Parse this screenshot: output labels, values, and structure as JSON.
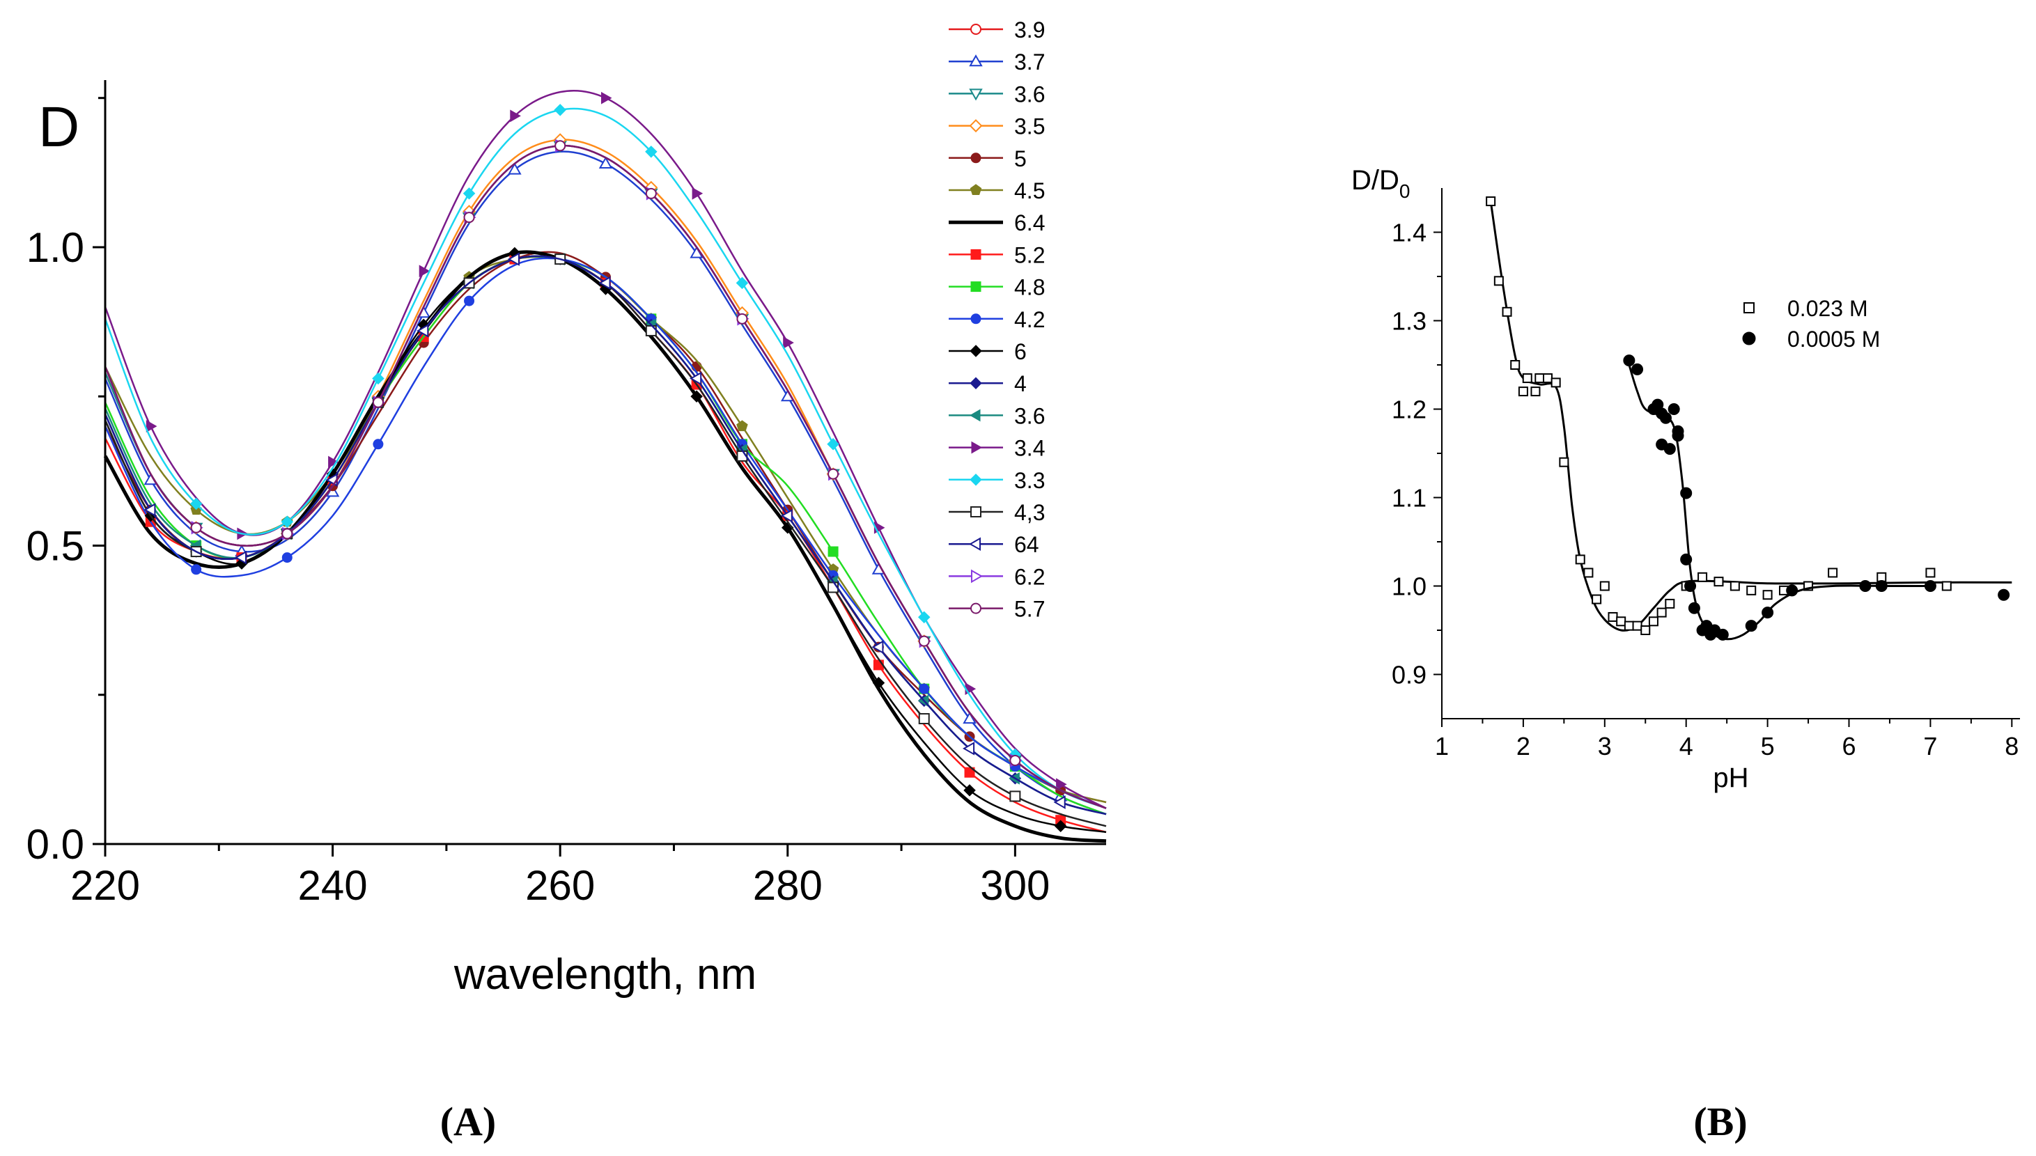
{
  "chart_data": [
    {
      "type": "line",
      "panel_label": "(A)",
      "title": "",
      "corner_label": "D",
      "xlabel": "wavelength, nm",
      "ylabel": "",
      "xlim": [
        220,
        308
      ],
      "ylim": [
        0.0,
        1.28
      ],
      "xticks": [
        220,
        240,
        260,
        280,
        300
      ],
      "xtick_labels": [
        "220",
        "240",
        "260",
        "280",
        "300"
      ],
      "yticks": [
        0.0,
        0.5,
        1.0
      ],
      "ytick_labels": [
        "0.0",
        "0.5",
        "1.0"
      ],
      "grid": false,
      "legend_position": "top-right",
      "x": [
        220,
        224,
        228,
        232,
        236,
        240,
        244,
        248,
        252,
        256,
        260,
        264,
        268,
        272,
        276,
        280,
        284,
        288,
        292,
        296,
        300,
        304,
        308
      ],
      "series": [
        {
          "name": "3.9",
          "color": "#e41a1c",
          "marker": "circle-open",
          "values": [
            0.79,
            0.62,
            0.53,
            0.5,
            0.52,
            0.6,
            0.74,
            0.9,
            1.05,
            1.14,
            1.17,
            1.15,
            1.09,
            1.0,
            0.88,
            0.76,
            0.62,
            0.47,
            0.34,
            0.22,
            0.14,
            0.09,
            0.06
          ]
        },
        {
          "name": "3.7",
          "color": "#1f3fd0",
          "marker": "triangle-up-open",
          "values": [
            0.78,
            0.61,
            0.52,
            0.49,
            0.51,
            0.59,
            0.73,
            0.89,
            1.04,
            1.13,
            1.16,
            1.14,
            1.08,
            0.99,
            0.87,
            0.75,
            0.61,
            0.46,
            0.33,
            0.21,
            0.13,
            0.08,
            0.05
          ]
        },
        {
          "name": "3.6",
          "color": "#1a8a8a",
          "marker": "triangle-down-open",
          "values": [
            0.79,
            0.62,
            0.53,
            0.5,
            0.52,
            0.6,
            0.74,
            0.9,
            1.05,
            1.14,
            1.17,
            1.15,
            1.09,
            1.0,
            0.88,
            0.76,
            0.62,
            0.47,
            0.34,
            0.22,
            0.14,
            0.09,
            0.06
          ]
        },
        {
          "name": "3.5",
          "color": "#ff8c1a",
          "marker": "diamond-open",
          "values": [
            0.8,
            0.62,
            0.53,
            0.5,
            0.52,
            0.6,
            0.75,
            0.91,
            1.06,
            1.15,
            1.18,
            1.16,
            1.1,
            1.01,
            0.89,
            0.77,
            0.62,
            0.47,
            0.34,
            0.22,
            0.14,
            0.09,
            0.06
          ]
        },
        {
          "name": "5",
          "color": "#8b1a1a",
          "marker": "circle",
          "values": [
            0.7,
            0.56,
            0.49,
            0.48,
            0.52,
            0.6,
            0.72,
            0.84,
            0.93,
            0.98,
            0.99,
            0.95,
            0.88,
            0.8,
            0.68,
            0.56,
            0.44,
            0.33,
            0.25,
            0.18,
            0.13,
            0.09,
            0.07
          ]
        },
        {
          "name": "4.5",
          "color": "#808020",
          "marker": "pentagon",
          "values": [
            0.8,
            0.65,
            0.56,
            0.52,
            0.54,
            0.62,
            0.74,
            0.86,
            0.95,
            0.98,
            0.98,
            0.95,
            0.88,
            0.81,
            0.7,
            0.58,
            0.46,
            0.35,
            0.26,
            0.18,
            0.13,
            0.09,
            0.07
          ]
        },
        {
          "name": "6.4",
          "color": "#000000",
          "marker": "none",
          "values": [
            0.65,
            0.52,
            0.47,
            0.47,
            0.52,
            0.62,
            0.75,
            0.86,
            0.95,
            0.99,
            0.98,
            0.93,
            0.85,
            0.75,
            0.63,
            0.53,
            0.4,
            0.26,
            0.15,
            0.07,
            0.03,
            0.01,
            0.005
          ]
        },
        {
          "name": "5.2",
          "color": "#ff1a1a",
          "marker": "square",
          "values": [
            0.68,
            0.54,
            0.49,
            0.48,
            0.52,
            0.61,
            0.74,
            0.85,
            0.94,
            0.98,
            0.98,
            0.94,
            0.86,
            0.77,
            0.64,
            0.55,
            0.43,
            0.3,
            0.2,
            0.12,
            0.07,
            0.04,
            0.02
          ]
        },
        {
          "name": "4.8",
          "color": "#22dd22",
          "marker": "square",
          "values": [
            0.74,
            0.58,
            0.5,
            0.48,
            0.52,
            0.61,
            0.74,
            0.85,
            0.94,
            0.98,
            0.98,
            0.95,
            0.88,
            0.79,
            0.67,
            0.6,
            0.49,
            0.37,
            0.26,
            0.18,
            0.13,
            0.08,
            0.05
          ]
        },
        {
          "name": "4.2",
          "color": "#1f3fe0",
          "marker": "circle",
          "values": [
            0.7,
            0.54,
            0.46,
            0.45,
            0.48,
            0.55,
            0.67,
            0.8,
            0.91,
            0.97,
            0.98,
            0.95,
            0.88,
            0.79,
            0.67,
            0.56,
            0.45,
            0.35,
            0.26,
            0.18,
            0.13,
            0.09,
            0.06
          ]
        },
        {
          "name": "6",
          "color": "#000000",
          "marker": "diamond",
          "values": [
            0.71,
            0.55,
            0.49,
            0.47,
            0.52,
            0.62,
            0.75,
            0.87,
            0.95,
            0.99,
            0.98,
            0.93,
            0.85,
            0.75,
            0.63,
            0.53,
            0.4,
            0.27,
            0.17,
            0.09,
            0.05,
            0.03,
            0.02
          ]
        },
        {
          "name": "4",
          "color": "#1a1a90",
          "marker": "diamond",
          "values": [
            0.72,
            0.56,
            0.49,
            0.48,
            0.52,
            0.61,
            0.74,
            0.86,
            0.94,
            0.98,
            0.98,
            0.94,
            0.87,
            0.78,
            0.66,
            0.55,
            0.44,
            0.33,
            0.24,
            0.16,
            0.11,
            0.07,
            0.05
          ]
        },
        {
          "name": "3.6",
          "color": "#1a8a80",
          "marker": "triangle-left",
          "values": [
            0.73,
            0.57,
            0.5,
            0.48,
            0.52,
            0.61,
            0.74,
            0.86,
            0.94,
            0.98,
            0.98,
            0.94,
            0.87,
            0.78,
            0.66,
            0.55,
            0.44,
            0.33,
            0.24,
            0.16,
            0.11,
            0.07,
            0.05
          ]
        },
        {
          "name": "3.4",
          "color": "#7a1a8a",
          "marker": "triangle-right",
          "values": [
            0.9,
            0.7,
            0.58,
            0.52,
            0.54,
            0.64,
            0.79,
            0.96,
            1.12,
            1.22,
            1.26,
            1.25,
            1.19,
            1.09,
            0.96,
            0.84,
            0.69,
            0.53,
            0.38,
            0.26,
            0.16,
            0.1,
            0.06
          ]
        },
        {
          "name": "3.3",
          "color": "#1ad6f0",
          "marker": "diamond",
          "values": [
            0.88,
            0.68,
            0.57,
            0.52,
            0.54,
            0.63,
            0.78,
            0.94,
            1.09,
            1.19,
            1.23,
            1.22,
            1.16,
            1.06,
            0.94,
            0.82,
            0.67,
            0.52,
            0.38,
            0.25,
            0.15,
            0.09,
            0.06
          ]
        },
        {
          "name": "4,3",
          "color": "#222222",
          "marker": "square-open",
          "values": [
            0.71,
            0.55,
            0.49,
            0.48,
            0.52,
            0.61,
            0.74,
            0.86,
            0.94,
            0.98,
            0.98,
            0.94,
            0.86,
            0.77,
            0.65,
            0.54,
            0.43,
            0.31,
            0.21,
            0.13,
            0.08,
            0.05,
            0.03
          ]
        },
        {
          "name": "64",
          "color": "#1a1a90",
          "marker": "triangle-left-open",
          "values": [
            0.72,
            0.56,
            0.49,
            0.48,
            0.52,
            0.61,
            0.74,
            0.86,
            0.94,
            0.98,
            0.98,
            0.94,
            0.87,
            0.78,
            0.66,
            0.55,
            0.44,
            0.33,
            0.24,
            0.16,
            0.11,
            0.07,
            0.05
          ]
        },
        {
          "name": "6.2",
          "color": "#8a3ae0",
          "marker": "triangle-right-open",
          "values": [
            0.8,
            0.62,
            0.53,
            0.5,
            0.52,
            0.6,
            0.74,
            0.9,
            1.05,
            1.14,
            1.17,
            1.15,
            1.09,
            1.0,
            0.88,
            0.76,
            0.62,
            0.47,
            0.34,
            0.22,
            0.14,
            0.09,
            0.06
          ]
        },
        {
          "name": "5.7",
          "color": "#7a1a6a",
          "marker": "circle-open",
          "values": [
            0.8,
            0.62,
            0.53,
            0.5,
            0.52,
            0.6,
            0.74,
            0.9,
            1.05,
            1.14,
            1.17,
            1.15,
            1.09,
            1.0,
            0.88,
            0.76,
            0.62,
            0.47,
            0.34,
            0.22,
            0.14,
            0.09,
            0.06
          ]
        }
      ]
    },
    {
      "type": "scatter",
      "panel_label": "(B)",
      "title": "",
      "ylabel_main": "D/D",
      "ylabel_sub": "0",
      "xlabel": "pH",
      "xlim": [
        1,
        8.1
      ],
      "ylim": [
        0.85,
        1.45
      ],
      "xticks": [
        1,
        2,
        3,
        4,
        5,
        6,
        7,
        8
      ],
      "xtick_labels": [
        "1",
        "2",
        "3",
        "4",
        "5",
        "6",
        "7",
        "8"
      ],
      "yticks": [
        0.9,
        1.0,
        1.1,
        1.2,
        1.3,
        1.4
      ],
      "ytick_labels": [
        "0.9",
        "1.0",
        "1.1",
        "1.2",
        "1.3",
        "1.4"
      ],
      "grid": false,
      "legend_position": "top-right",
      "series": [
        {
          "name": "0.023 M",
          "marker": "square-open",
          "color": "#000000",
          "points": [
            [
              1.6,
              1.435
            ],
            [
              1.7,
              1.345
            ],
            [
              1.8,
              1.31
            ],
            [
              1.9,
              1.25
            ],
            [
              2.0,
              1.22
            ],
            [
              2.05,
              1.235
            ],
            [
              2.15,
              1.22
            ],
            [
              2.2,
              1.235
            ],
            [
              2.3,
              1.235
            ],
            [
              2.4,
              1.23
            ],
            [
              2.5,
              1.14
            ],
            [
              2.7,
              1.03
            ],
            [
              2.8,
              1.015
            ],
            [
              2.9,
              0.985
            ],
            [
              3.0,
              1.0
            ],
            [
              3.1,
              0.965
            ],
            [
              3.2,
              0.96
            ],
            [
              3.3,
              0.955
            ],
            [
              3.4,
              0.955
            ],
            [
              3.5,
              0.95
            ],
            [
              3.6,
              0.96
            ],
            [
              3.7,
              0.97
            ],
            [
              3.8,
              0.98
            ],
            [
              4.0,
              1.0
            ],
            [
              4.2,
              1.01
            ],
            [
              4.4,
              1.005
            ],
            [
              4.6,
              1.0
            ],
            [
              4.8,
              0.995
            ],
            [
              5.0,
              0.99
            ],
            [
              5.2,
              0.995
            ],
            [
              5.5,
              1.0
            ],
            [
              5.8,
              1.015
            ],
            [
              6.4,
              1.01
            ],
            [
              7.0,
              1.015
            ],
            [
              7.2,
              1.0
            ]
          ],
          "fit": [
            [
              1.6,
              1.435
            ],
            [
              1.75,
              1.34
            ],
            [
              1.9,
              1.26
            ],
            [
              2.0,
              1.235
            ],
            [
              2.2,
              1.228
            ],
            [
              2.4,
              1.225
            ],
            [
              2.5,
              1.18
            ],
            [
              2.6,
              1.09
            ],
            [
              2.7,
              1.03
            ],
            [
              2.85,
              0.985
            ],
            [
              3.0,
              0.962
            ],
            [
              3.2,
              0.95
            ],
            [
              3.4,
              0.955
            ],
            [
              3.6,
              0.975
            ],
            [
              3.8,
              0.995
            ],
            [
              4.0,
              1.005
            ],
            [
              4.5,
              1.005
            ],
            [
              5.0,
              1.003
            ],
            [
              6.0,
              1.003
            ],
            [
              7.0,
              1.004
            ],
            [
              8.0,
              1.004
            ]
          ]
        },
        {
          "name": "0.0005 M",
          "marker": "circle",
          "color": "#000000",
          "points": [
            [
              3.3,
              1.255
            ],
            [
              3.4,
              1.245
            ],
            [
              3.6,
              1.2
            ],
            [
              3.65,
              1.205
            ],
            [
              3.7,
              1.195
            ],
            [
              3.75,
              1.19
            ],
            [
              3.7,
              1.16
            ],
            [
              3.8,
              1.155
            ],
            [
              3.85,
              1.2
            ],
            [
              3.9,
              1.175
            ],
            [
              3.9,
              1.17
            ],
            [
              4.0,
              1.105
            ],
            [
              4.0,
              1.03
            ],
            [
              4.05,
              1.0
            ],
            [
              4.1,
              0.975
            ],
            [
              4.2,
              0.95
            ],
            [
              4.25,
              0.955
            ],
            [
              4.3,
              0.945
            ],
            [
              4.35,
              0.95
            ],
            [
              4.45,
              0.945
            ],
            [
              4.8,
              0.955
            ],
            [
              5.0,
              0.97
            ],
            [
              5.3,
              0.995
            ],
            [
              6.2,
              1.0
            ],
            [
              6.4,
              1.0
            ],
            [
              7.0,
              1.0
            ],
            [
              7.9,
              0.99
            ]
          ],
          "fit": [
            [
              3.3,
              1.25
            ],
            [
              3.4,
              1.22
            ],
            [
              3.5,
              1.2
            ],
            [
              3.7,
              1.192
            ],
            [
              3.85,
              1.18
            ],
            [
              3.95,
              1.12
            ],
            [
              4.05,
              1.02
            ],
            [
              4.15,
              0.97
            ],
            [
              4.3,
              0.948
            ],
            [
              4.5,
              0.94
            ],
            [
              4.7,
              0.945
            ],
            [
              4.9,
              0.96
            ],
            [
              5.1,
              0.98
            ],
            [
              5.4,
              0.995
            ],
            [
              5.8,
              1.0
            ],
            [
              6.5,
              1.0
            ],
            [
              7.0,
              1.0
            ]
          ]
        }
      ]
    }
  ]
}
